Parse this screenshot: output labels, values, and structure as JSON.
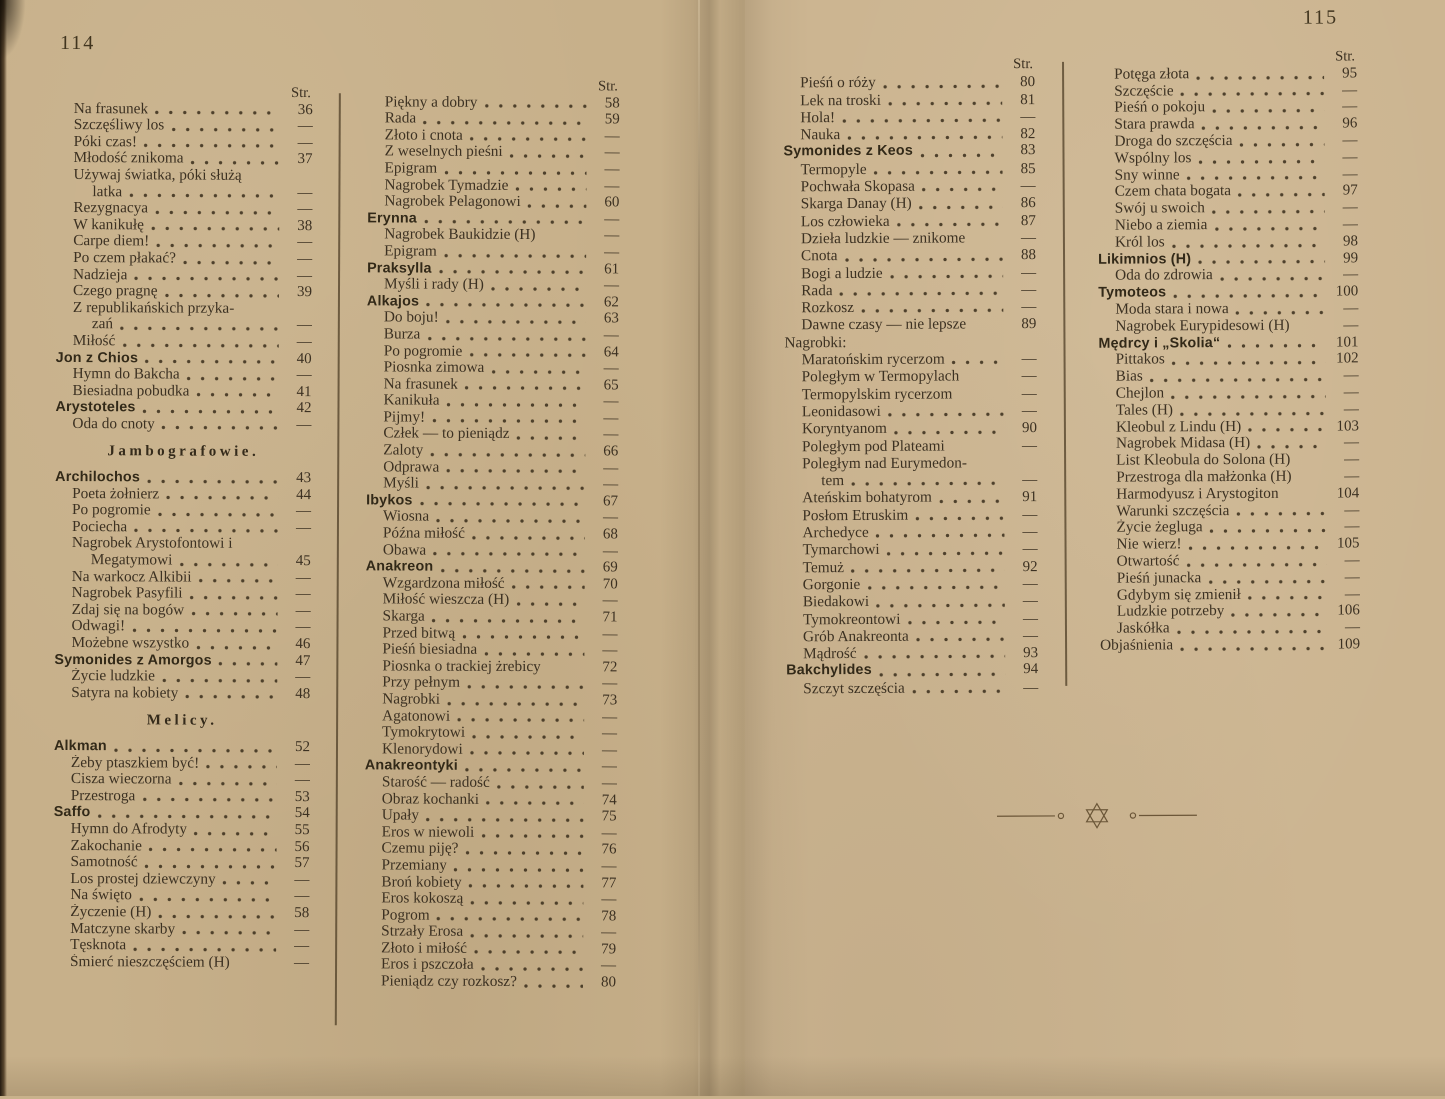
{
  "colors": {
    "paper_left": "#c7b08a",
    "paper_right": "#ccb591",
    "ink": "#3c3122",
    "rule": "#5c4a32"
  },
  "icons": {
    "ornament": "star-divider-icon"
  },
  "book": {
    "left_page": {
      "page_number": "114",
      "columns": [
        {
          "header": "Str.",
          "entries": [
            {
              "t": "Na frasunek",
              "p": "36"
            },
            {
              "t": "Szczęśliwy los",
              "p": "—"
            },
            {
              "t": "Póki czas!",
              "p": "—"
            },
            {
              "t": "Młodość znikoma",
              "p": "37"
            },
            {
              "t": "Używaj światka, póki służą",
              "s": "plain"
            },
            {
              "t": "latka",
              "p": "—",
              "s": "item2"
            },
            {
              "t": "Rezygnacya",
              "p": "—"
            },
            {
              "t": "W kanikułę",
              "p": "38"
            },
            {
              "t": "Carpe diem!",
              "p": "—"
            },
            {
              "t": "Po czem płakać?",
              "p": "—"
            },
            {
              "t": "Nadzieja",
              "p": "—"
            },
            {
              "t": "Czego pragnę",
              "p": "39"
            },
            {
              "t": "Z republikańskich przyka-",
              "s": "plain"
            },
            {
              "t": "zań",
              "p": "—",
              "s": "item2"
            },
            {
              "t": "Miłość",
              "p": "—"
            },
            {
              "t": "Jon z Chios",
              "p": "40",
              "s": "author"
            },
            {
              "t": "Hymn do Bakcha",
              "p": "—"
            },
            {
              "t": "Biesiadna pobudka",
              "p": "41"
            },
            {
              "t": "Arystoteles",
              "p": "42",
              "s": "author"
            },
            {
              "t": "Oda do cnoty",
              "p": "—"
            },
            {
              "t": "Jambografowie.",
              "s": "section"
            },
            {
              "t": "Archilochos",
              "p": "43",
              "s": "author"
            },
            {
              "t": "Poeta żołnierz",
              "p": "44"
            },
            {
              "t": "Po pogromie",
              "p": "—"
            },
            {
              "t": "Pociecha",
              "p": "—"
            },
            {
              "t": "Nagrobek Arystofontowi i",
              "s": "plain"
            },
            {
              "t": "Megatymowi",
              "p": "45",
              "s": "item2"
            },
            {
              "t": "Na warkocz Alkibii",
              "p": "—"
            },
            {
              "t": "Nagrobek Pasyfili",
              "p": "—"
            },
            {
              "t": "Zdaj się na bogów",
              "p": "—"
            },
            {
              "t": "Odwagi!",
              "p": "—"
            },
            {
              "t": "Możebne wszystko",
              "p": "46"
            },
            {
              "t": "Symonides z Amorgos",
              "p": "47",
              "s": "author"
            },
            {
              "t": "Życie ludzkie",
              "p": "—"
            },
            {
              "t": "Satyra na kobiety",
              "p": "48"
            },
            {
              "t": "Melicy.",
              "s": "section"
            },
            {
              "t": "Alkman",
              "p": "52",
              "s": "author"
            },
            {
              "t": "Żeby ptaszkiem być!",
              "p": "—"
            },
            {
              "t": "Cisza wieczorna",
              "p": "—"
            },
            {
              "t": "Przestroga",
              "p": "53"
            },
            {
              "t": "Saffo",
              "p": "54",
              "s": "author"
            },
            {
              "t": "Hymn do Afrodyty",
              "p": "55"
            },
            {
              "t": "Zakochanie",
              "p": "56"
            },
            {
              "t": "Samotność",
              "p": "57"
            },
            {
              "t": "Los prostej dziewczyny",
              "p": "—"
            },
            {
              "t": "Na święto",
              "p": "—"
            },
            {
              "t": "Życzenie (H)",
              "p": "58"
            },
            {
              "t": "Matczyne skarby",
              "p": "—"
            },
            {
              "t": "Tęsknota",
              "p": "—"
            },
            {
              "t": "Śmierć nieszczęściem (H)",
              "p": "—",
              "d": false
            }
          ]
        },
        {
          "header": "Str.",
          "entries": [
            {
              "t": "Piękny a dobry",
              "p": "58"
            },
            {
              "t": "Rada",
              "p": "59"
            },
            {
              "t": "Złoto i cnota",
              "p": "—"
            },
            {
              "t": "Z weselnych pieśni",
              "p": "—"
            },
            {
              "t": "Epigram",
              "p": "—"
            },
            {
              "t": "Nagrobek Tymadzie",
              "p": "—"
            },
            {
              "t": "Nagrobek Pelagonowi",
              "p": "60"
            },
            {
              "t": "Erynna",
              "p": "—",
              "s": "author"
            },
            {
              "t": "Nagrobek Baukidzie (H)",
              "p": "—",
              "d": false
            },
            {
              "t": "Epigram",
              "p": "—"
            },
            {
              "t": "Praksylla",
              "p": "61",
              "s": "author"
            },
            {
              "t": "Myśli i rady (H)",
              "p": "—"
            },
            {
              "t": "Alkajos",
              "p": "62",
              "s": "author"
            },
            {
              "t": "Do boju!",
              "p": "63"
            },
            {
              "t": "Burza",
              "p": "—"
            },
            {
              "t": "Po pogromie",
              "p": "64"
            },
            {
              "t": "Piosnka zimowa",
              "p": "—"
            },
            {
              "t": "Na frasunek",
              "p": "65"
            },
            {
              "t": "Kanikuła",
              "p": "—"
            },
            {
              "t": "Pijmy!",
              "p": "—"
            },
            {
              "t": "Człek — to pieniądz",
              "p": "—"
            },
            {
              "t": "Zaloty",
              "p": "66"
            },
            {
              "t": "Odprawa",
              "p": "—"
            },
            {
              "t": "Myśli",
              "p": "—"
            },
            {
              "t": "Ibykos",
              "p": "67",
              "s": "author"
            },
            {
              "t": "Wiosna",
              "p": "—"
            },
            {
              "t": "Późna miłość",
              "p": "68"
            },
            {
              "t": "Obawa",
              "p": "—"
            },
            {
              "t": "Anakreon",
              "p": "69",
              "s": "author"
            },
            {
              "t": "Wzgardzona miłość",
              "p": "70"
            },
            {
              "t": "Miłość wieszcza (H)",
              "p": "—"
            },
            {
              "t": "Skarga",
              "p": "71"
            },
            {
              "t": "Przed bitwą",
              "p": "—"
            },
            {
              "t": "Pieśń biesiadna",
              "p": "—"
            },
            {
              "t": "Piosnka o trackiej żrebicy",
              "p": "72",
              "d": false
            },
            {
              "t": "Przy pełnym",
              "p": "—"
            },
            {
              "t": "Nagrobki",
              "p": "73"
            },
            {
              "t": "Agatonowi",
              "p": "—"
            },
            {
              "t": "Tymokrytowi",
              "p": "—"
            },
            {
              "t": "Klenorydowi",
              "p": "—"
            },
            {
              "t": "Anakreontyki",
              "p": "—",
              "s": "author"
            },
            {
              "t": "Starość — radość",
              "p": "—"
            },
            {
              "t": "Obraz kochanki",
              "p": "74"
            },
            {
              "t": "Upały",
              "p": "75"
            },
            {
              "t": "Eros w niewoli",
              "p": "—"
            },
            {
              "t": "Czemu piję?",
              "p": "76"
            },
            {
              "t": "Przemiany",
              "p": "—"
            },
            {
              "t": "Broń kobiety",
              "p": "77"
            },
            {
              "t": "Eros kokoszą",
              "p": "—"
            },
            {
              "t": "Pogrom",
              "p": "78"
            },
            {
              "t": "Strzały Erosa",
              "p": "—"
            },
            {
              "t": "Złoto i miłość",
              "p": "79"
            },
            {
              "t": "Eros i pszczoła",
              "p": "—"
            },
            {
              "t": "Pieniądz czy rozkosz?",
              "p": "80"
            }
          ]
        }
      ]
    },
    "right_page": {
      "page_number": "115",
      "columns": [
        {
          "header": "Str.",
          "entries": [
            {
              "t": "Pieśń o róży",
              "p": "80"
            },
            {
              "t": "Lek na troski",
              "p": "81"
            },
            {
              "t": "Hola!",
              "p": "—"
            },
            {
              "t": "Nauka",
              "p": "82"
            },
            {
              "t": "Symonides z Keos",
              "p": "83",
              "s": "author"
            },
            {
              "t": "Termopyle",
              "p": "85"
            },
            {
              "t": "Pochwała Skopasa",
              "p": "—"
            },
            {
              "t": "Skarga Danay (H)",
              "p": "86"
            },
            {
              "t": "Los człowieka",
              "p": "87"
            },
            {
              "t": "Dzieła ludzkie — znikome",
              "p": "—",
              "d": false
            },
            {
              "t": "Cnota",
              "p": "88"
            },
            {
              "t": "Bogi a ludzie",
              "p": "—"
            },
            {
              "t": "Rada",
              "p": "—"
            },
            {
              "t": "Rozkosz",
              "p": "—"
            },
            {
              "t": "Dawne czasy — nie lepsze",
              "p": "89",
              "d": false
            },
            {
              "t": "Nagrobki:",
              "s": "group"
            },
            {
              "t": "Maratońskim rycerzom",
              "p": "—"
            },
            {
              "t": "Poległym w Termopylach",
              "p": "—",
              "d": false
            },
            {
              "t": "Termopylskim rycerzom",
              "p": "—",
              "d": false
            },
            {
              "t": "Leonidasowi",
              "p": "—"
            },
            {
              "t": "Koryntyanom",
              "p": "90"
            },
            {
              "t": "Poległym pod Plateami",
              "p": "—",
              "d": false
            },
            {
              "t": "Poległym nad Eurymedon-",
              "s": "plain"
            },
            {
              "t": "tem",
              "p": "—",
              "s": "item2"
            },
            {
              "t": "Ateńskim bohatyrom",
              "p": "91"
            },
            {
              "t": "Posłom Etruskim",
              "p": "—"
            },
            {
              "t": "Archedyce",
              "p": "—"
            },
            {
              "t": "Tymarchowi",
              "p": "—"
            },
            {
              "t": "Temuż",
              "p": "92"
            },
            {
              "t": "Gorgonie",
              "p": "—"
            },
            {
              "t": "Biedakowi",
              "p": "—"
            },
            {
              "t": "Tymokreontowi",
              "p": "—"
            },
            {
              "t": "Grób Anakreonta",
              "p": "—"
            },
            {
              "t": "Mądrość",
              "p": "93"
            },
            {
              "t": "Bakchylides",
              "p": "94",
              "s": "author"
            },
            {
              "t": "Szczyt szczęścia",
              "p": "—"
            }
          ]
        },
        {
          "header": "Str.",
          "entries": [
            {
              "t": "Potęga złota",
              "p": "95"
            },
            {
              "t": "Szczęście",
              "p": "—"
            },
            {
              "t": "Pieśń o pokoju",
              "p": "—"
            },
            {
              "t": "Stara prawda",
              "p": "96"
            },
            {
              "t": "Droga do szczęścia",
              "p": "—"
            },
            {
              "t": "Wspólny los",
              "p": "—"
            },
            {
              "t": "Sny winne",
              "p": "—"
            },
            {
              "t": "Czem chata bogata",
              "p": "97"
            },
            {
              "t": "Swój u swoich",
              "p": "—"
            },
            {
              "t": "Niebo a ziemia",
              "p": "—"
            },
            {
              "t": "Król los",
              "p": "98"
            },
            {
              "t": "Likimnios (H)",
              "p": "99",
              "s": "author"
            },
            {
              "t": "Oda do zdrowia",
              "p": "—"
            },
            {
              "t": "Tymoteos",
              "p": "100",
              "s": "author"
            },
            {
              "t": "Moda stara i nowa",
              "p": "—"
            },
            {
              "t": "Nagrobek Eurypidesowi (H)",
              "p": "—",
              "d": false
            },
            {
              "t": "Mędrcy i „Skolia“",
              "p": "101",
              "s": "author"
            },
            {
              "t": "Pittakos",
              "p": "102"
            },
            {
              "t": "Bias",
              "p": "—"
            },
            {
              "t": "Chejlon",
              "p": "—"
            },
            {
              "t": "Tales (H)",
              "p": "—"
            },
            {
              "t": "Kleobul z Lindu (H)",
              "p": "103"
            },
            {
              "t": "Nagrobek Midasa (H)",
              "p": "—"
            },
            {
              "t": "List Kleobula do Solona (H)",
              "p": "—",
              "d": false
            },
            {
              "t": "Przestroga dla małżonka (H)",
              "p": "—",
              "d": false
            },
            {
              "t": "Harmodyusz i Arystogiton",
              "p": "104",
              "d": false
            },
            {
              "t": "Warunki szczęścia",
              "p": "—"
            },
            {
              "t": "Życie żegluga",
              "p": "—"
            },
            {
              "t": "Nie wierz!",
              "p": "105"
            },
            {
              "t": "Otwartość",
              "p": "—"
            },
            {
              "t": "Pieśń junacka",
              "p": "—"
            },
            {
              "t": "Gdybym się zmienił",
              "p": "—"
            },
            {
              "t": "Ludzkie potrzeby",
              "p": "106"
            },
            {
              "t": "Jaskółka",
              "p": "—"
            },
            {
              "t": "Objaśnienia",
              "p": "109",
              "s": "group"
            }
          ]
        }
      ]
    }
  }
}
